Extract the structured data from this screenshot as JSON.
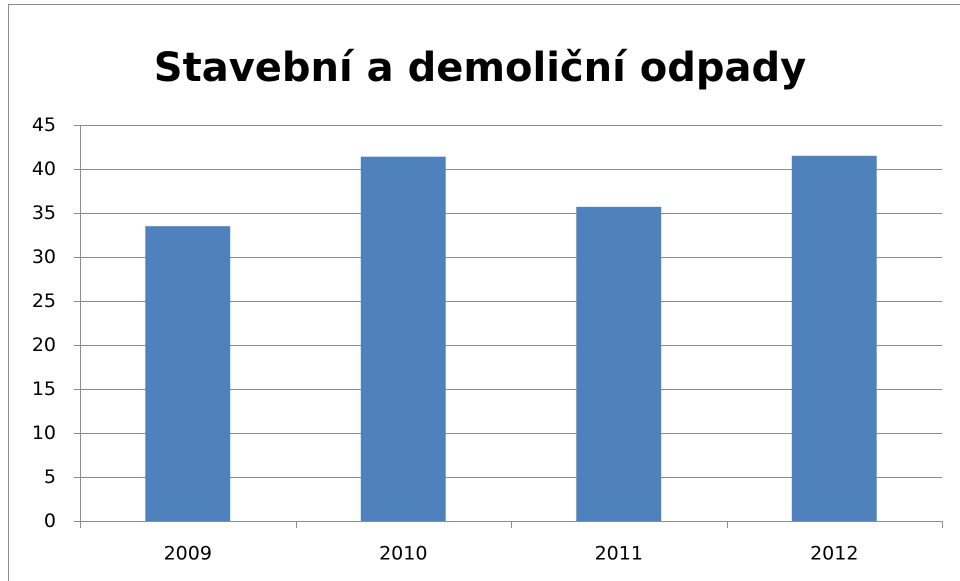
{
  "chart_data": {
    "type": "bar",
    "title": "Stavební a demoliční odpady",
    "categories": [
      "2009",
      "2010",
      "2011",
      "2012"
    ],
    "values": [
      33.5,
      41.4,
      35.7,
      41.5
    ],
    "color": "#4f81bd",
    "ylim": [
      0,
      45
    ],
    "yticks": [
      0,
      5,
      10,
      15,
      20,
      25,
      30,
      35,
      40,
      45
    ],
    "grid": true
  }
}
